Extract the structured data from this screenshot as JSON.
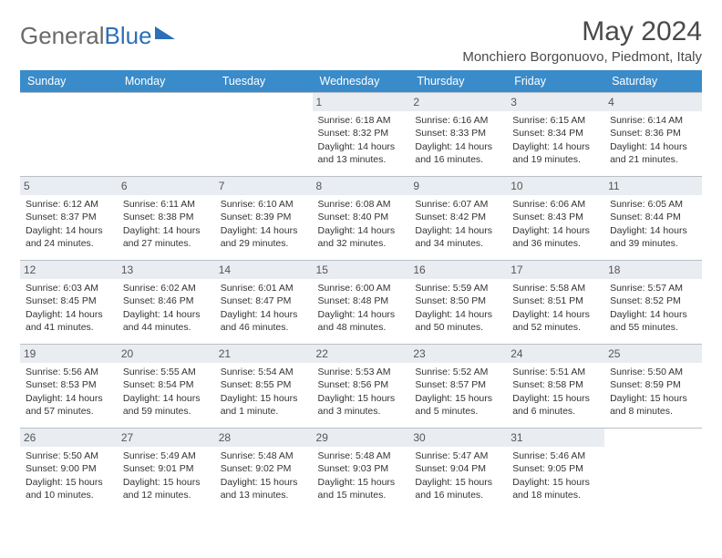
{
  "brand": {
    "part1": "General",
    "part2": "Blue"
  },
  "title": "May 2024",
  "location": "Monchiero Borgonuovo, Piedmont, Italy",
  "colors": {
    "header_bg": "#3a8bc9",
    "daynum_bg": "#e9edf1",
    "border": "#b8c0c7",
    "text": "#333333",
    "brand_gray": "#6a6a6a",
    "brand_blue": "#2d6fb8"
  },
  "weekdays": [
    "Sunday",
    "Monday",
    "Tuesday",
    "Wednesday",
    "Thursday",
    "Friday",
    "Saturday"
  ],
  "start_weekday_index": 3,
  "days": [
    {
      "n": 1,
      "sunrise": "6:18 AM",
      "sunset": "8:32 PM",
      "daylight": "14 hours and 13 minutes."
    },
    {
      "n": 2,
      "sunrise": "6:16 AM",
      "sunset": "8:33 PM",
      "daylight": "14 hours and 16 minutes."
    },
    {
      "n": 3,
      "sunrise": "6:15 AM",
      "sunset": "8:34 PM",
      "daylight": "14 hours and 19 minutes."
    },
    {
      "n": 4,
      "sunrise": "6:14 AM",
      "sunset": "8:36 PM",
      "daylight": "14 hours and 21 minutes."
    },
    {
      "n": 5,
      "sunrise": "6:12 AM",
      "sunset": "8:37 PM",
      "daylight": "14 hours and 24 minutes."
    },
    {
      "n": 6,
      "sunrise": "6:11 AM",
      "sunset": "8:38 PM",
      "daylight": "14 hours and 27 minutes."
    },
    {
      "n": 7,
      "sunrise": "6:10 AM",
      "sunset": "8:39 PM",
      "daylight": "14 hours and 29 minutes."
    },
    {
      "n": 8,
      "sunrise": "6:08 AM",
      "sunset": "8:40 PM",
      "daylight": "14 hours and 32 minutes."
    },
    {
      "n": 9,
      "sunrise": "6:07 AM",
      "sunset": "8:42 PM",
      "daylight": "14 hours and 34 minutes."
    },
    {
      "n": 10,
      "sunrise": "6:06 AM",
      "sunset": "8:43 PM",
      "daylight": "14 hours and 36 minutes."
    },
    {
      "n": 11,
      "sunrise": "6:05 AM",
      "sunset": "8:44 PM",
      "daylight": "14 hours and 39 minutes."
    },
    {
      "n": 12,
      "sunrise": "6:03 AM",
      "sunset": "8:45 PM",
      "daylight": "14 hours and 41 minutes."
    },
    {
      "n": 13,
      "sunrise": "6:02 AM",
      "sunset": "8:46 PM",
      "daylight": "14 hours and 44 minutes."
    },
    {
      "n": 14,
      "sunrise": "6:01 AM",
      "sunset": "8:47 PM",
      "daylight": "14 hours and 46 minutes."
    },
    {
      "n": 15,
      "sunrise": "6:00 AM",
      "sunset": "8:48 PM",
      "daylight": "14 hours and 48 minutes."
    },
    {
      "n": 16,
      "sunrise": "5:59 AM",
      "sunset": "8:50 PM",
      "daylight": "14 hours and 50 minutes."
    },
    {
      "n": 17,
      "sunrise": "5:58 AM",
      "sunset": "8:51 PM",
      "daylight": "14 hours and 52 minutes."
    },
    {
      "n": 18,
      "sunrise": "5:57 AM",
      "sunset": "8:52 PM",
      "daylight": "14 hours and 55 minutes."
    },
    {
      "n": 19,
      "sunrise": "5:56 AM",
      "sunset": "8:53 PM",
      "daylight": "14 hours and 57 minutes."
    },
    {
      "n": 20,
      "sunrise": "5:55 AM",
      "sunset": "8:54 PM",
      "daylight": "14 hours and 59 minutes."
    },
    {
      "n": 21,
      "sunrise": "5:54 AM",
      "sunset": "8:55 PM",
      "daylight": "15 hours and 1 minute."
    },
    {
      "n": 22,
      "sunrise": "5:53 AM",
      "sunset": "8:56 PM",
      "daylight": "15 hours and 3 minutes."
    },
    {
      "n": 23,
      "sunrise": "5:52 AM",
      "sunset": "8:57 PM",
      "daylight": "15 hours and 5 minutes."
    },
    {
      "n": 24,
      "sunrise": "5:51 AM",
      "sunset": "8:58 PM",
      "daylight": "15 hours and 6 minutes."
    },
    {
      "n": 25,
      "sunrise": "5:50 AM",
      "sunset": "8:59 PM",
      "daylight": "15 hours and 8 minutes."
    },
    {
      "n": 26,
      "sunrise": "5:50 AM",
      "sunset": "9:00 PM",
      "daylight": "15 hours and 10 minutes."
    },
    {
      "n": 27,
      "sunrise": "5:49 AM",
      "sunset": "9:01 PM",
      "daylight": "15 hours and 12 minutes."
    },
    {
      "n": 28,
      "sunrise": "5:48 AM",
      "sunset": "9:02 PM",
      "daylight": "15 hours and 13 minutes."
    },
    {
      "n": 29,
      "sunrise": "5:48 AM",
      "sunset": "9:03 PM",
      "daylight": "15 hours and 15 minutes."
    },
    {
      "n": 30,
      "sunrise": "5:47 AM",
      "sunset": "9:04 PM",
      "daylight": "15 hours and 16 minutes."
    },
    {
      "n": 31,
      "sunrise": "5:46 AM",
      "sunset": "9:05 PM",
      "daylight": "15 hours and 18 minutes."
    }
  ],
  "labels": {
    "sunrise": "Sunrise:",
    "sunset": "Sunset:",
    "daylight": "Daylight:"
  }
}
